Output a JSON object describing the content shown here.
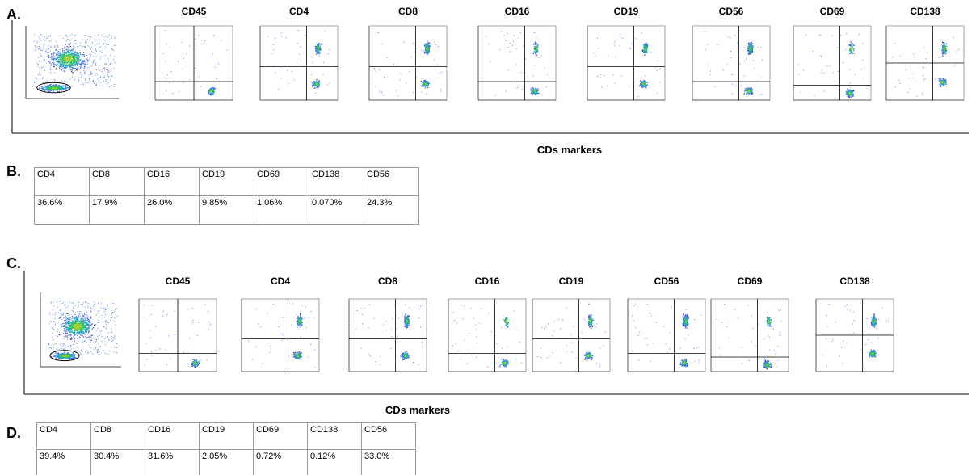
{
  "panel_a": {
    "label": "A.",
    "plot_titles": [
      "CD45",
      "CD4",
      "CD8",
      "CD16",
      "CD19",
      "CD56",
      "CD69",
      "CD138"
    ],
    "caption": "CDs markers"
  },
  "panel_b": {
    "label": "B.",
    "table": {
      "rows": [
        [
          "CD4",
          "CD8",
          "CD16",
          "CD19",
          "CD69",
          "CD138",
          "CD56"
        ],
        [
          "36.6%",
          "17.9%",
          "26.0%",
          "9.85%",
          "1.06%",
          "0.070%",
          "24.3%"
        ]
      ]
    }
  },
  "panel_c": {
    "label": "C.",
    "plot_titles": [
      "CD45",
      "CD4",
      "CD8",
      "CD16",
      "CD19",
      "CD56",
      "CD69",
      "CD138"
    ],
    "caption": "CDs markers"
  },
  "panel_d": {
    "label": "D.",
    "table": {
      "rows": [
        [
          "CD4",
          "CD8",
          "CD16",
          "CD19",
          "CD69",
          "CD138",
          "CD56"
        ],
        [
          "39.4%",
          "30.4%",
          "31.6%",
          "2.05%",
          "0.72%",
          "0.12%",
          "33.0%"
        ]
      ]
    }
  }
}
